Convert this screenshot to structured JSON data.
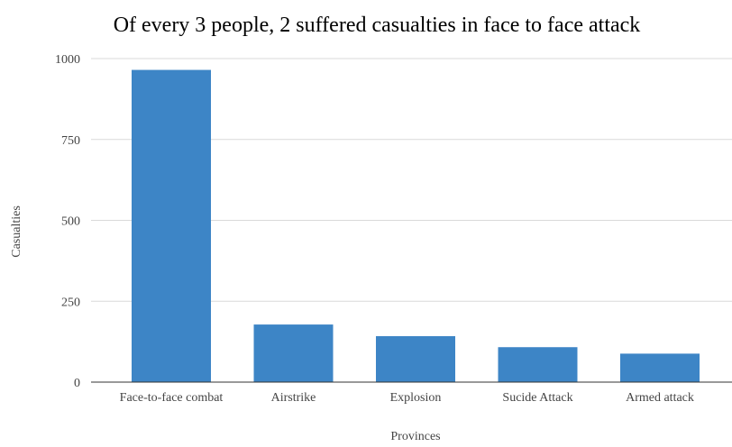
{
  "chart_data": {
    "type": "bar",
    "title": "Of every 3 people, 2 suffered casualties in face to face attack",
    "xlabel": "Provinces",
    "ylabel": "Casualties",
    "categories": [
      "Face-to-face combat",
      "Airstrike",
      "Explosion",
      "Sucide Attack",
      "Armed attack"
    ],
    "values": [
      965,
      178,
      142,
      108,
      88
    ],
    "ylim": [
      0,
      1000
    ],
    "yticks": [
      "0",
      "250",
      "500",
      "750",
      "1000"
    ],
    "grid": true,
    "legend": "none",
    "colors": {
      "bar": "#3d85c6",
      "grid": "#d9d9d9",
      "axis": "#333333",
      "title": "#000000",
      "tick_label": "#444444"
    }
  }
}
